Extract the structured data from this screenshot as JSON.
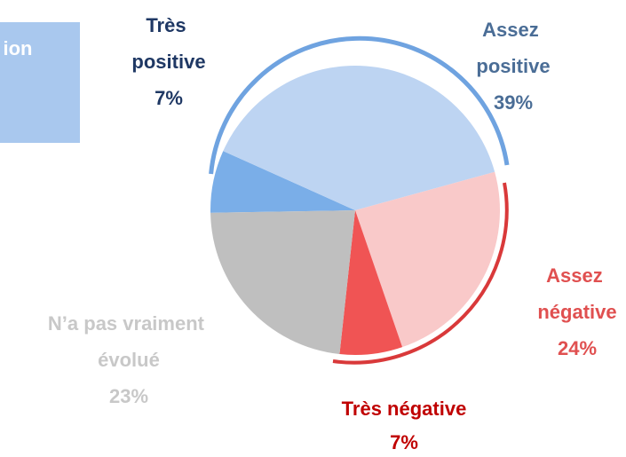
{
  "side_box": {
    "text": "ion"
  },
  "chart_data": {
    "type": "pie",
    "categories": [
      "Très positive",
      "Assez positive",
      "Assez négative",
      "Très négative",
      "N’a pas vraiment évolué"
    ],
    "values": [
      7,
      39,
      24,
      7,
      23
    ],
    "value_labels": [
      "7%",
      "39%",
      "24%",
      "7%",
      "23%"
    ],
    "colors": [
      "#7aaee8",
      "#bdd4f2",
      "#f9c9c9",
      "#f05454",
      "#bfbfbf"
    ],
    "label_colors": [
      "#1f3864",
      "#4a6d96",
      "#e05050",
      "#c00000",
      "#c8c8c8"
    ]
  }
}
